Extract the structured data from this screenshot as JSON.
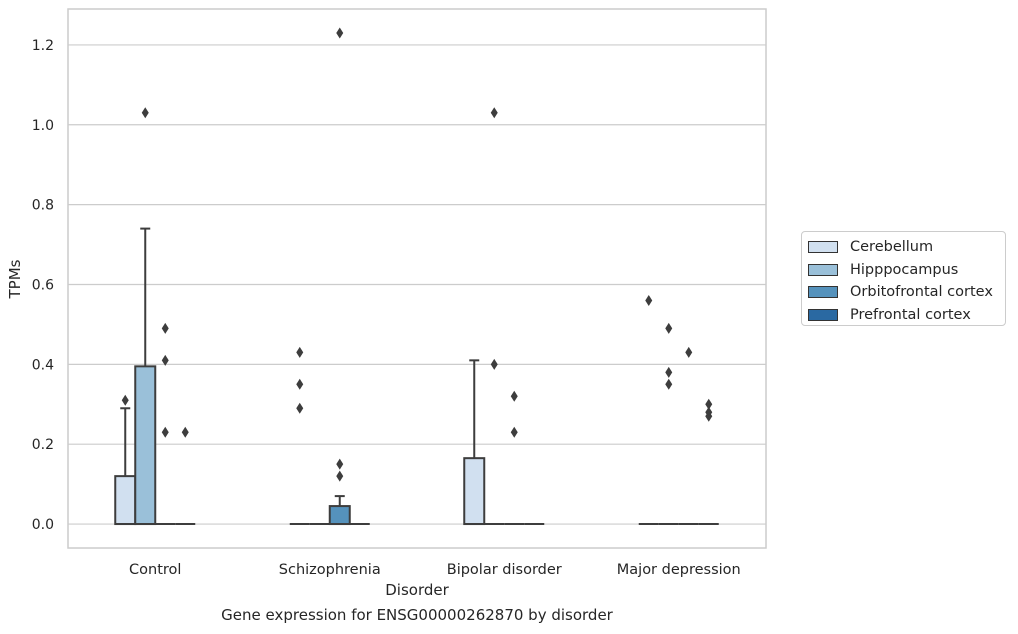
{
  "caption": "Gene expression for ENSG00000262870 by disorder",
  "colors": {
    "Cerebellum": "#d1e0f0",
    "Hipppocampus": "#9ac0d9",
    "Orbitofrontal cortex": "#5592bc",
    "Prefrontal cortex": "#2a69a2",
    "box_edge": "#3d3d3d",
    "grid": "#cccccc"
  },
  "chart_data": {
    "type": "box",
    "title": "",
    "xlabel": "Disorder",
    "ylabel": "TPMs",
    "categories": [
      "Control",
      "Schizophrenia",
      "Bipolar disorder",
      "Major depression"
    ],
    "ylim": [
      -0.06,
      1.29
    ],
    "yticks": [
      0.0,
      0.2,
      0.4,
      0.6,
      0.8,
      1.0,
      1.2
    ],
    "ytick_labels": [
      "0.0",
      "0.2",
      "0.4",
      "0.6",
      "0.8",
      "1.0",
      "1.2"
    ],
    "grid": "horizontal",
    "legend_position": "outside-right",
    "series": [
      {
        "name": "Cerebellum",
        "boxes": [
          {
            "q1": 0.0,
            "median": 0.0,
            "q3": 0.12,
            "whisker_low": 0.0,
            "whisker_high": 0.29,
            "outliers": [
              0.31
            ]
          },
          {
            "q1": 0.0,
            "median": 0.0,
            "q3": 0.0,
            "whisker_low": 0.0,
            "whisker_high": 0.0,
            "outliers": [
              0.29,
              0.35,
              0.43
            ]
          },
          {
            "q1": 0.0,
            "median": 0.0,
            "q3": 0.165,
            "whisker_low": 0.0,
            "whisker_high": 0.41,
            "outliers": []
          },
          {
            "q1": 0.0,
            "median": 0.0,
            "q3": 0.0,
            "whisker_low": 0.0,
            "whisker_high": 0.0,
            "outliers": [
              0.56
            ]
          }
        ]
      },
      {
        "name": "Hipppocampus",
        "boxes": [
          {
            "q1": 0.0,
            "median": 0.0,
            "q3": 0.395,
            "whisker_low": 0.0,
            "whisker_high": 0.74,
            "outliers": [
              1.03
            ]
          },
          {
            "q1": 0.0,
            "median": 0.0,
            "q3": 0.0,
            "whisker_low": 0.0,
            "whisker_high": 0.0,
            "outliers": []
          },
          {
            "q1": 0.0,
            "median": 0.0,
            "q3": 0.0,
            "whisker_low": 0.0,
            "whisker_high": 0.0,
            "outliers": [
              1.03,
              0.4
            ]
          },
          {
            "q1": 0.0,
            "median": 0.0,
            "q3": 0.0,
            "whisker_low": 0.0,
            "whisker_high": 0.0,
            "outliers": [
              0.35,
              0.38,
              0.49
            ]
          }
        ]
      },
      {
        "name": "Orbitofrontal cortex",
        "boxes": [
          {
            "q1": 0.0,
            "median": 0.0,
            "q3": 0.0,
            "whisker_low": 0.0,
            "whisker_high": 0.0,
            "outliers": [
              0.23,
              0.41,
              0.49
            ]
          },
          {
            "q1": 0.0,
            "median": 0.0,
            "q3": 0.045,
            "whisker_low": 0.0,
            "whisker_high": 0.07,
            "outliers": [
              0.12,
              0.15,
              1.23
            ]
          },
          {
            "q1": 0.0,
            "median": 0.0,
            "q3": 0.0,
            "whisker_low": 0.0,
            "whisker_high": 0.0,
            "outliers": [
              0.23,
              0.32
            ]
          },
          {
            "q1": 0.0,
            "median": 0.0,
            "q3": 0.0,
            "whisker_low": 0.0,
            "whisker_high": 0.0,
            "outliers": [
              0.43
            ]
          }
        ]
      },
      {
        "name": "Prefrontal cortex",
        "boxes": [
          {
            "q1": 0.0,
            "median": 0.0,
            "q3": 0.0,
            "whisker_low": 0.0,
            "whisker_high": 0.0,
            "outliers": [
              0.23
            ]
          },
          {
            "q1": 0.0,
            "median": 0.0,
            "q3": 0.0,
            "whisker_low": 0.0,
            "whisker_high": 0.0,
            "outliers": []
          },
          {
            "q1": 0.0,
            "median": 0.0,
            "q3": 0.0,
            "whisker_low": 0.0,
            "whisker_high": 0.0,
            "outliers": []
          },
          {
            "q1": 0.0,
            "median": 0.0,
            "q3": 0.0,
            "whisker_low": 0.0,
            "whisker_high": 0.0,
            "outliers": [
              0.27,
              0.28,
              0.3
            ]
          }
        ]
      }
    ]
  }
}
